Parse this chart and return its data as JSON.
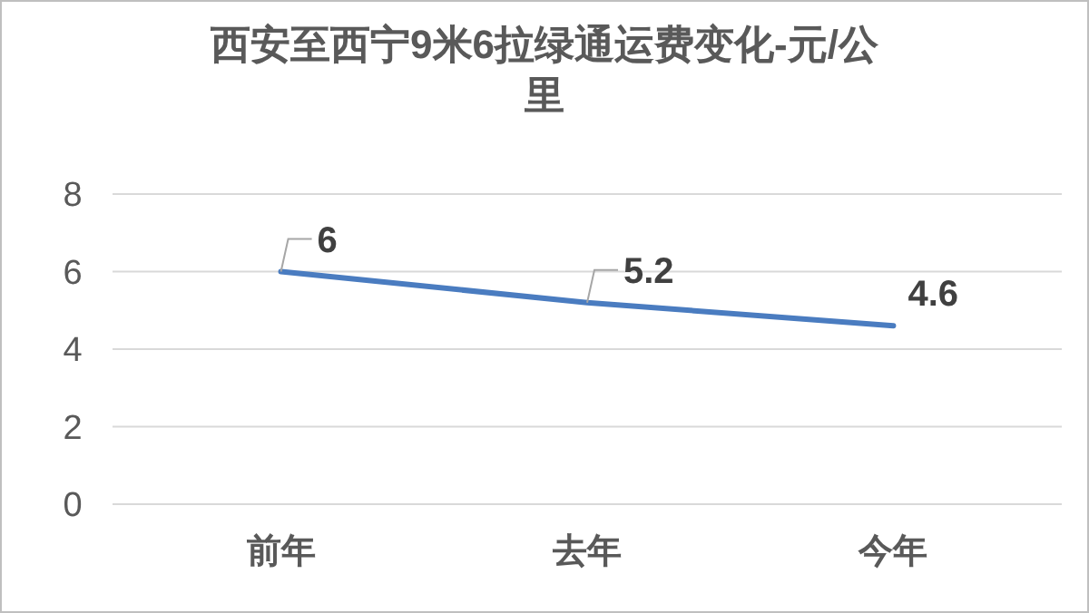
{
  "chart_data": {
    "type": "line",
    "title": "西安至西宁9米6拉绿通运费变化-元/公里",
    "categories": [
      "前年",
      "去年",
      "今年"
    ],
    "series": [
      {
        "color": "#4a7cc0",
        "values": [
          6,
          5.2,
          4.6
        ]
      }
    ],
    "ylim": [
      0,
      8
    ],
    "yticks": [
      0,
      2,
      4,
      6,
      8
    ],
    "grid": "y",
    "data_labels": true,
    "marker": "none"
  }
}
